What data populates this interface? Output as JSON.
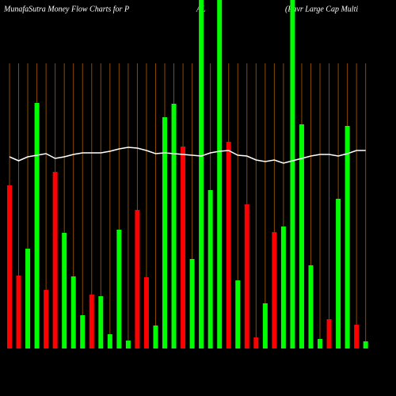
{
  "chart_data": {
    "type": "bar",
    "title": "MunafaSutra  Money  Flow  Charts for P",
    "title_middle": "AL",
    "title_right": "(Pavr Large   Cap  Multi",
    "categories": [
      null,
      null,
      null,
      null,
      null,
      null,
      null,
      null,
      null,
      null,
      null,
      null,
      null,
      null,
      null,
      null,
      null,
      null,
      null,
      null,
      null,
      null,
      null,
      null,
      null,
      null,
      null,
      null,
      null,
      null,
      null,
      null,
      null,
      null,
      null,
      null,
      null,
      null,
      null,
      null
    ],
    "series": [
      {
        "colors": [
          "#ff0000",
          "#ff0000",
          "#00ff00",
          "#00ff00",
          "#ff0000",
          "#ff0000",
          "#00ff00",
          "#00ff00",
          "#00ff00",
          "#ff0000",
          "#00ff00",
          "#00ff00",
          "#00ff00",
          "#00ff00",
          "#ff0000",
          "#ff0000",
          "#00ff00",
          "#00ff00",
          "#00ff00",
          "#ff0000",
          "#00ff00",
          "#00ff00",
          "#00ff00",
          "#00ff00",
          "#ff0000",
          "#00ff00",
          "#ff0000",
          "#ff0000",
          "#00ff00",
          "#ff0000",
          "#00ff00",
          "#00ff00",
          "#00ff00",
          "#00ff00",
          "#00ff00",
          "#ff0000",
          "#00ff00",
          "#00ff00",
          "#ff0000",
          "#00ff00"
        ],
        "values": [
          206,
          92,
          126,
          310,
          74,
          223,
          146,
          91,
          42,
          68,
          66,
          18,
          150,
          10,
          175,
          90,
          29,
          292,
          309,
          255,
          113,
          440,
          200,
          440,
          261,
          86,
          182,
          14,
          57,
          147,
          154,
          440,
          283,
          105,
          12,
          37,
          189,
          281,
          30,
          9
        ]
      },
      {
        "type": "line",
        "color": "#ffffff",
        "values": [
          242,
          237,
          242,
          244,
          246,
          240,
          242,
          245,
          247,
          247,
          247,
          249,
          252,
          254,
          253,
          250,
          246,
          247,
          246,
          245,
          244,
          243,
          247,
          249,
          250,
          244,
          243,
          238,
          236,
          238,
          234,
          237,
          240,
          243,
          245,
          245,
          243,
          246,
          250,
          250
        ]
      }
    ],
    "ylim": [
      0,
      440
    ],
    "vgrid": true,
    "grid_color": "#8b4c00"
  }
}
